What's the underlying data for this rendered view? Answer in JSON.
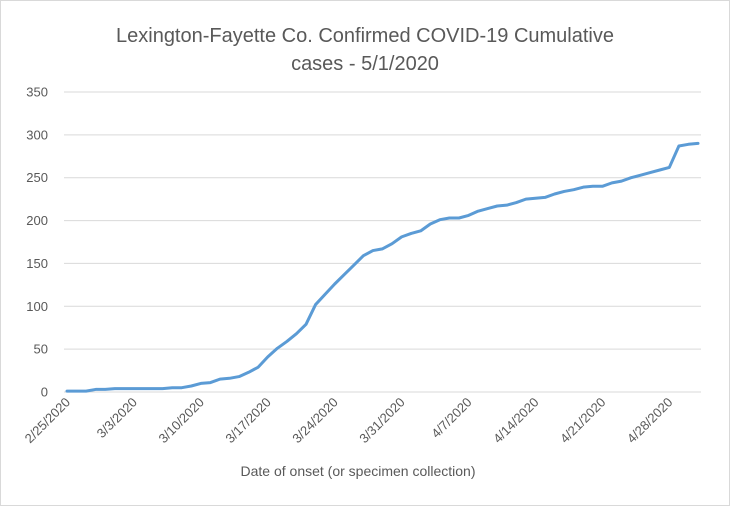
{
  "chart_data": {
    "type": "line",
    "title_line1": "Lexington-Fayette Co. Confirmed COVID-19 Cumulative",
    "title_line2": "cases - 5/1/2020",
    "xlabel": "Date of onset (or specimen collection)",
    "ylabel": "",
    "ylim": [
      0,
      350
    ],
    "yticks": [
      0,
      50,
      100,
      150,
      200,
      250,
      300,
      350
    ],
    "grid": true,
    "legend": "none",
    "line_color": "#5b9bd5",
    "xtick_labels": [
      "2/25/2020",
      "3/3/2020",
      "3/10/2020",
      "3/17/2020",
      "3/24/2020",
      "3/31/2020",
      "4/7/2020",
      "4/14/2020",
      "4/21/2020",
      "4/28/2020"
    ],
    "x": [
      "2/25/2020",
      "2/26/2020",
      "2/27/2020",
      "2/28/2020",
      "2/29/2020",
      "3/1/2020",
      "3/2/2020",
      "3/3/2020",
      "3/4/2020",
      "3/5/2020",
      "3/6/2020",
      "3/7/2020",
      "3/8/2020",
      "3/9/2020",
      "3/10/2020",
      "3/11/2020",
      "3/12/2020",
      "3/13/2020",
      "3/14/2020",
      "3/15/2020",
      "3/16/2020",
      "3/17/2020",
      "3/18/2020",
      "3/19/2020",
      "3/20/2020",
      "3/21/2020",
      "3/22/2020",
      "3/23/2020",
      "3/24/2020",
      "3/25/2020",
      "3/26/2020",
      "3/27/2020",
      "3/28/2020",
      "3/29/2020",
      "3/30/2020",
      "3/31/2020",
      "4/1/2020",
      "4/2/2020",
      "4/3/2020",
      "4/4/2020",
      "4/5/2020",
      "4/6/2020",
      "4/7/2020",
      "4/8/2020",
      "4/9/2020",
      "4/10/2020",
      "4/11/2020",
      "4/12/2020",
      "4/13/2020",
      "4/14/2020",
      "4/15/2020",
      "4/16/2020",
      "4/17/2020",
      "4/18/2020",
      "4/19/2020",
      "4/20/2020",
      "4/21/2020",
      "4/22/2020",
      "4/23/2020",
      "4/24/2020",
      "4/25/2020",
      "4/26/2020",
      "4/27/2020",
      "4/28/2020",
      "4/29/2020",
      "4/30/2020",
      "5/1/2020"
    ],
    "values": [
      1,
      1,
      1,
      3,
      3,
      4,
      4,
      4,
      4,
      4,
      4,
      5,
      5,
      7,
      10,
      11,
      15,
      16,
      18,
      23,
      29,
      41,
      51,
      59,
      68,
      79,
      102,
      114,
      126,
      137,
      148,
      159,
      165,
      167,
      173,
      181,
      185,
      188,
      196,
      201,
      203,
      203,
      206,
      211,
      214,
      217,
      218,
      221,
      225,
      226,
      227,
      231,
      234,
      236,
      239,
      240,
      240,
      244,
      246,
      250,
      253,
      256,
      259,
      262,
      287,
      289,
      290
    ]
  }
}
